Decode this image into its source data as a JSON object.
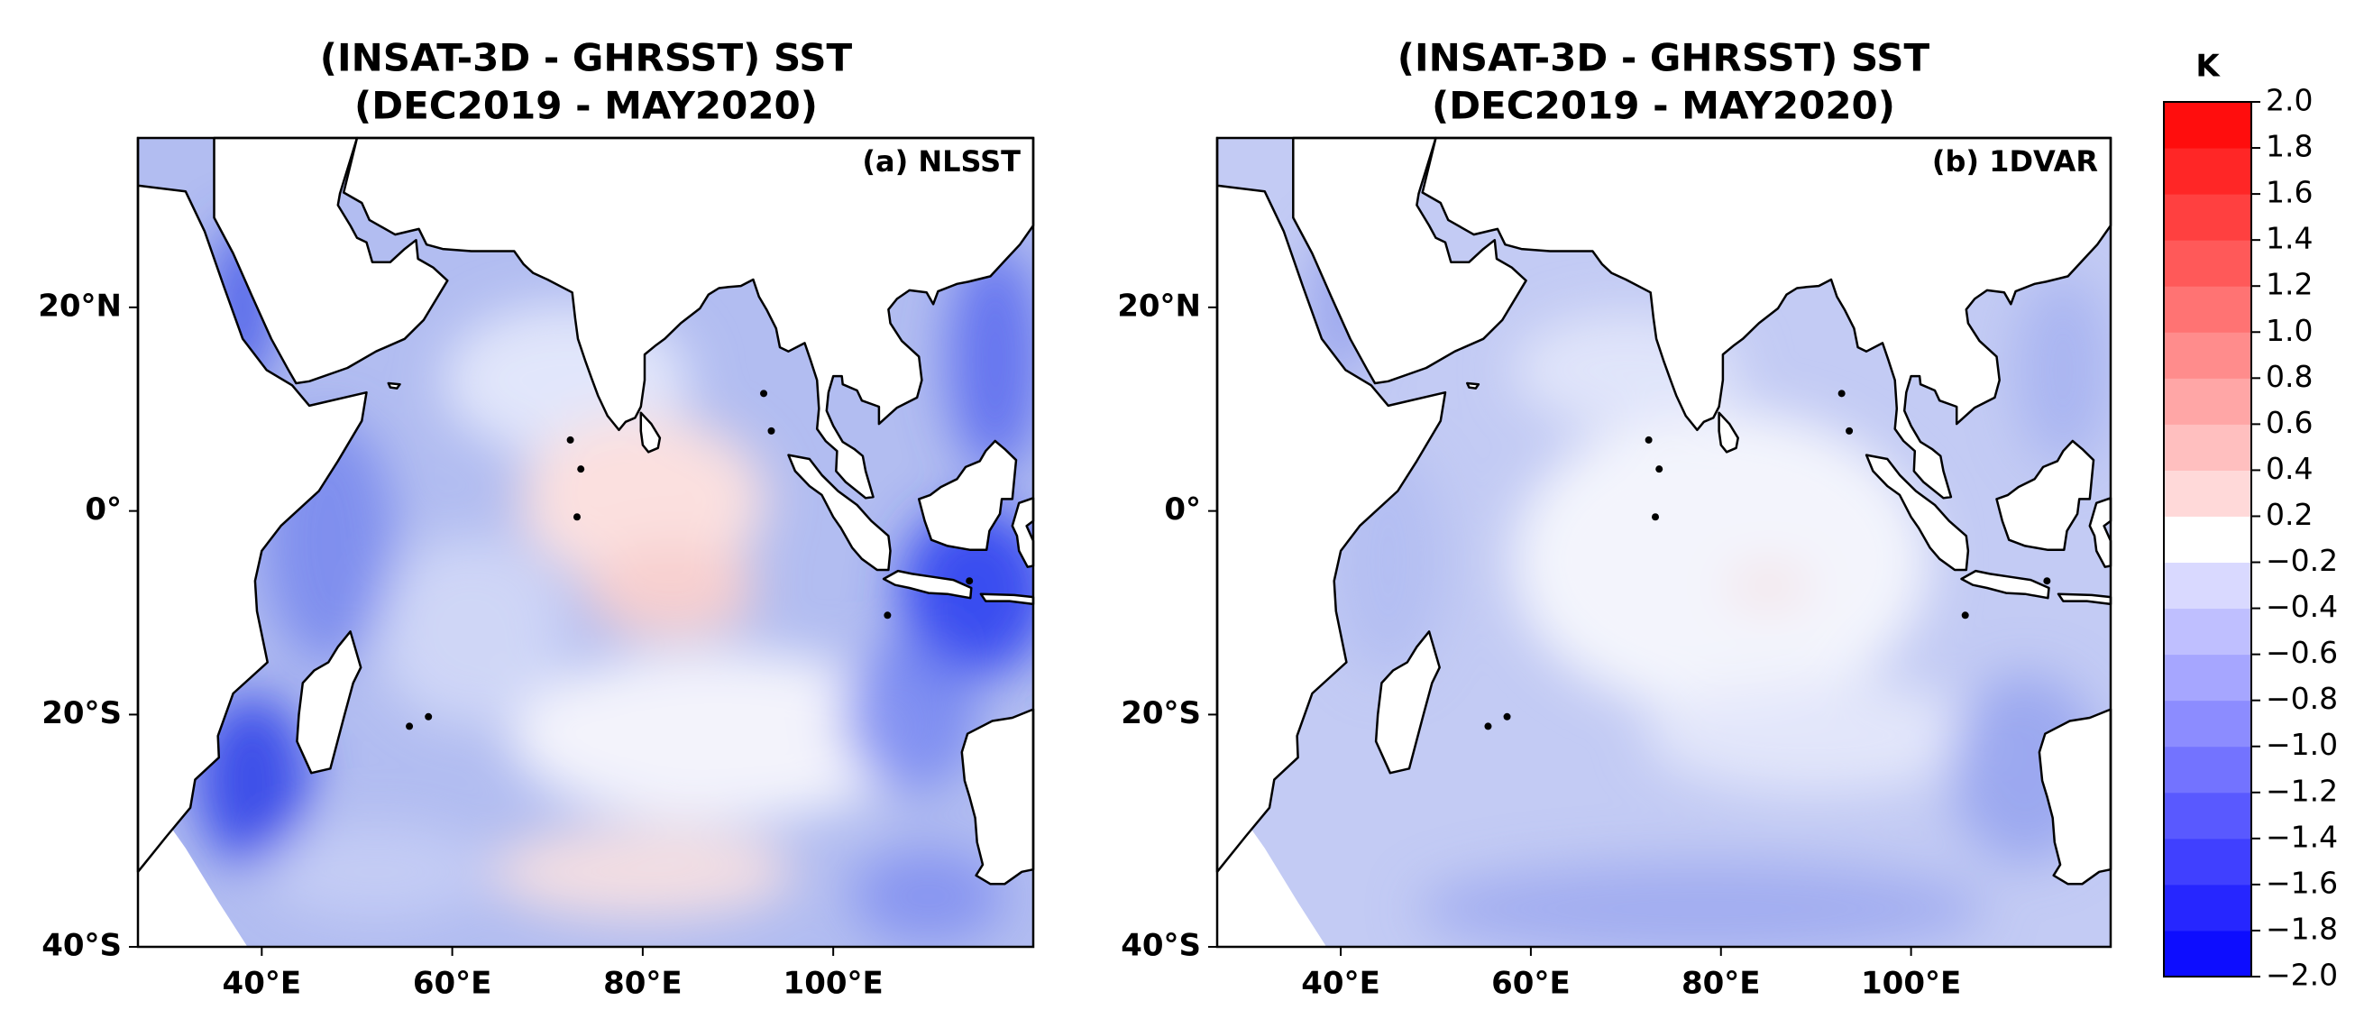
{
  "panels": [
    {
      "title": [
        "(INSAT-3D - GHRSST) SST",
        "(DEC2019 - MAY2020)"
      ],
      "label": "(a) NLSST",
      "xlim": [
        27,
        121
      ],
      "ylim": [
        -40,
        35
      ],
      "xticks": [
        {
          "value": 40,
          "label": "40°E"
        },
        {
          "value": 60,
          "label": "60°E"
        },
        {
          "value": 80,
          "label": "80°E"
        },
        {
          "value": 100,
          "label": "100°E"
        }
      ],
      "yticks": [
        {
          "value": 20,
          "label": "20°N"
        },
        {
          "value": 0,
          "label": "0°"
        },
        {
          "value": -20,
          "label": "20°S"
        },
        {
          "value": -40,
          "label": "40°S"
        }
      ]
    },
    {
      "title": [
        "(INSAT-3D - GHRSST) SST",
        "(DEC2019 - MAY2020)"
      ],
      "label": "(b) 1DVAR",
      "xlim": [
        27,
        121
      ],
      "ylim": [
        -40,
        35
      ],
      "xticks": [
        {
          "value": 40,
          "label": "40°E"
        },
        {
          "value": 60,
          "label": "60°E"
        },
        {
          "value": 80,
          "label": "80°E"
        },
        {
          "value": 100,
          "label": "100°E"
        }
      ],
      "yticks": [
        {
          "value": 20,
          "label": "20°N"
        },
        {
          "value": 0,
          "label": "0°"
        },
        {
          "value": -20,
          "label": "20°S"
        },
        {
          "value": -40,
          "label": "40°S"
        }
      ]
    }
  ],
  "colorbar": {
    "unit": "K",
    "colormap": "bwr",
    "ticks": [
      {
        "value": -2.0,
        "label": "−2.0"
      },
      {
        "value": -1.8,
        "label": "−1.8"
      },
      {
        "value": -1.6,
        "label": "−1.6"
      },
      {
        "value": -1.4,
        "label": "−1.4"
      },
      {
        "value": -1.2,
        "label": "−1.2"
      },
      {
        "value": -1.0,
        "label": "−1.0"
      },
      {
        "value": -0.8,
        "label": "−0.8"
      },
      {
        "value": -0.6,
        "label": "−0.6"
      },
      {
        "value": -0.4,
        "label": "−0.4"
      },
      {
        "value": -0.2,
        "label": "−0.2"
      },
      0.2,
      0.4,
      0.6,
      0.8,
      {
        "value": 1.0,
        "label": "1.0"
      },
      1.2,
      1.4,
      1.6,
      1.8,
      {
        "value": 2.0,
        "label": "2.0"
      }
    ]
  }
}
